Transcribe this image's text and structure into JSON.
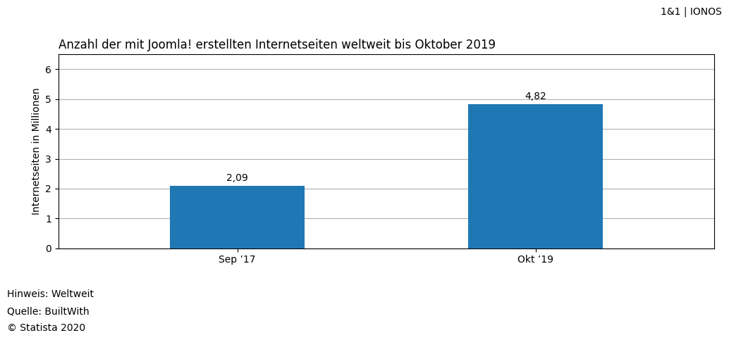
{
  "chart_data": {
    "type": "bar",
    "title": "Anzahl der mit Joomla! erstellten Internetseiten weltweit bis Oktober 2019",
    "categories": [
      "Sep ’17",
      "Okt ’19"
    ],
    "values": [
      2.09,
      4.82
    ],
    "value_labels": [
      "2,09",
      "4,82"
    ],
    "data_labels": true,
    "ylabel": "Internetseiten in Millionen",
    "ylim": [
      0,
      6.5
    ],
    "yticks": [
      0,
      1,
      2,
      3,
      4,
      5,
      6
    ],
    "grid": true,
    "annotations": [
      "1&1 | IONOS",
      "Hinweis: Weltweit",
      "Quelle: BuiltWith",
      "© Statista 2020"
    ]
  }
}
